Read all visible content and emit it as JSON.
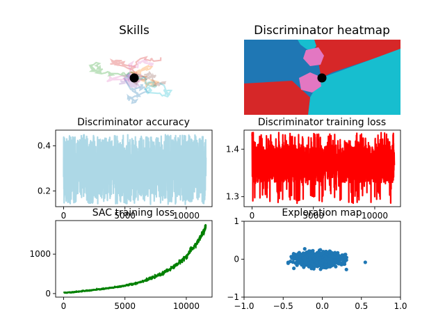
{
  "chart_data": [
    {
      "id": "skills",
      "type": "line",
      "title": "Skills",
      "axes_visible": false,
      "n_trajectories": 8,
      "trajectory_colors": [
        "#1f77b4",
        "#ff7f0e",
        "#2ca02c",
        "#d62728",
        "#9467bd",
        "#8c564b",
        "#e377c2",
        "#17becf"
      ],
      "trajectory_alpha": 0.3,
      "marker": {
        "color": "#000000"
      }
    },
    {
      "id": "discriminator-heatmap",
      "type": "heatmap",
      "title": "Discriminator heatmap",
      "axes_visible": false,
      "regions": [
        {
          "color": "#1f77b4"
        },
        {
          "color": "#d62728"
        },
        {
          "color": "#17becf"
        },
        {
          "color": "#e377c2"
        }
      ],
      "marker": {
        "color": "#000000"
      }
    },
    {
      "id": "discriminator-accuracy",
      "type": "line",
      "title": "Discriminator accuracy",
      "xlim": [
        -650,
        12100
      ],
      "ylim": [
        0.13,
        0.47
      ],
      "xticks": [
        0,
        5000,
        10000
      ],
      "yticks": [
        0.2,
        0.4
      ],
      "ytick_labels": [
        "0.2",
        "0.4"
      ],
      "n_points": 11600,
      "band": {
        "low": 0.17,
        "high": 0.43,
        "spike_min": 0.14,
        "spike_max": 0.45
      },
      "color": "#add8e6"
    },
    {
      "id": "discriminator-training-loss",
      "type": "line",
      "title": "Discriminator training loss",
      "xlim": [
        -650,
        12100
      ],
      "ylim": [
        1.279,
        1.44
      ],
      "xticks": [
        0,
        5000,
        10000
      ],
      "yticks": [
        1.3,
        1.4
      ],
      "ytick_labels": [
        "1.3",
        "1.4"
      ],
      "n_points": 11600,
      "band": {
        "low": 1.33,
        "high": 1.41,
        "spike_min": 1.285,
        "spike_max": 1.435
      },
      "color": "#ff0000"
    },
    {
      "id": "sac-training-loss",
      "type": "line",
      "title": "SAC training loss",
      "xlim": [
        -650,
        12100
      ],
      "ylim": [
        -90,
        1850
      ],
      "xticks": [
        0,
        5000,
        10000
      ],
      "yticks": [
        0,
        1000
      ],
      "ytick_labels": [
        "0",
        "1000"
      ],
      "x": [
        0,
        1000,
        2000,
        3000,
        4000,
        5000,
        6000,
        7000,
        8000,
        9000,
        10000,
        11000,
        11600
      ],
      "y": [
        20,
        45,
        75,
        110,
        150,
        200,
        270,
        370,
        500,
        680,
        940,
        1340,
        1680
      ],
      "color": "#008000"
    },
    {
      "id": "exploration-map",
      "type": "scatter",
      "title": "Exploration map",
      "xlim": [
        -1,
        1
      ],
      "ylim": [
        -1,
        1
      ],
      "xticks": [
        -1.0,
        -0.5,
        0.0,
        0.5,
        1.0
      ],
      "xtick_labels": [
        "−1.0",
        "−0.5",
        "0.0",
        "0.5",
        "1.0"
      ],
      "yticks": [
        -1,
        0,
        1
      ],
      "ytick_labels": [
        "−1",
        "0",
        "1"
      ],
      "n_points": 900,
      "cloud": {
        "center": [
          -0.05,
          0.0
        ],
        "spread_x": 0.14,
        "spread_y": 0.09
      },
      "color": "#1f77b4"
    }
  ]
}
